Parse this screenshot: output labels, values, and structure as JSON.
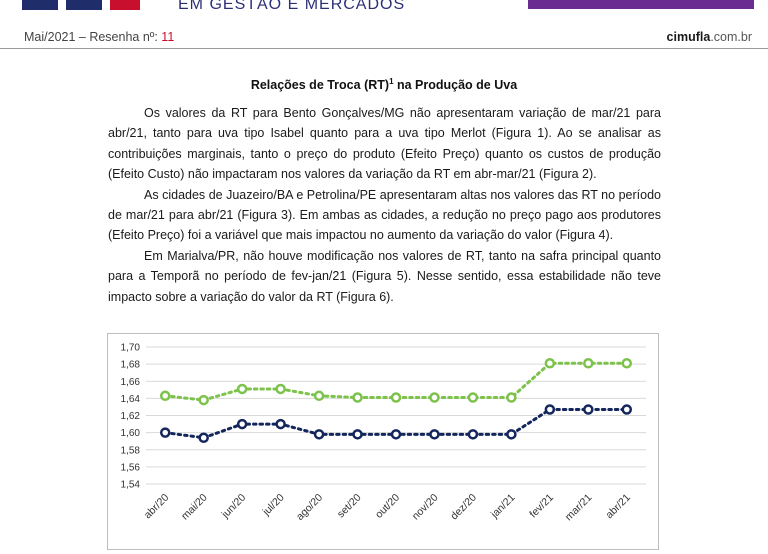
{
  "header": {
    "tagline": "EM GESTÃO E MERCADOS",
    "issue_label": "Mai/2021 – Resenha nº: ",
    "issue_number": "11",
    "site_brand": "cimufla",
    "site_domain": ".com.br"
  },
  "article": {
    "title": "Relações de Troca (RT)",
    "title_sup": "1",
    "title_rest": " na Produção de Uva",
    "paragraphs": [
      "Os valores da RT para Bento Gonçalves/MG não apresentaram variação de mar/21 para abr/21, tanto para uva tipo Isabel quanto para a uva tipo Merlot (Figura 1). Ao se analisar as contribuições marginais, tanto o preço do produto (Efeito Preço) quanto os custos de produção (Efeito Custo) não impactaram nos valores da variação da RT em abr-mar/21 (Figura 2).",
      "As cidades de Juazeiro/BA e Petrolina/PE apresentaram altas nos valores das RT no período de mar/21 para abr/21 (Figura 3). Em ambas as cidades, a redução no preço pago aos produtores (Efeito Preço) foi a variável que mais impactou no aumento da variação do valor (Figura 4).",
      "Em Marialva/PR, não houve modificação nos valores de RT, tanto na safra principal quanto para a Temporã no período de fev-jan/21 (Figura 5). Nesse sentido, essa estabilidade não teve impacto sobre a variação do valor da RT (Figura 6)."
    ]
  },
  "colors": {
    "navy": "#1f2d6b",
    "red": "#c8102e",
    "purple": "#6a2c91",
    "series_green": "#7dc24b",
    "series_navy": "#14275c"
  },
  "chart_data": {
    "type": "line",
    "categories": [
      "abr/20",
      "mai/20",
      "jun/20",
      "jul/20",
      "ago/20",
      "set/20",
      "out/20",
      "nov/20",
      "dez/20",
      "jan/21",
      "fev/21",
      "mar/21",
      "abr/21"
    ],
    "series": [
      {
        "name": "green",
        "color": "#7dc24b",
        "values": [
          1.643,
          1.638,
          1.651,
          1.651,
          1.643,
          1.641,
          1.641,
          1.641,
          1.641,
          1.641,
          1.681,
          1.681,
          1.681
        ]
      },
      {
        "name": "navy",
        "color": "#14275c",
        "values": [
          1.6,
          1.594,
          1.61,
          1.61,
          1.598,
          1.598,
          1.598,
          1.598,
          1.598,
          1.598,
          1.627,
          1.627,
          1.627
        ]
      }
    ],
    "ylim": [
      1.54,
      1.7
    ],
    "yticks": [
      "1,70",
      "1,68",
      "1,66",
      "1,64",
      "1,62",
      "1,60",
      "1,58",
      "1,56",
      "1,54"
    ],
    "ytick_values": [
      1.7,
      1.68,
      1.66,
      1.64,
      1.62,
      1.6,
      1.58,
      1.56,
      1.54
    ],
    "grid": true
  }
}
